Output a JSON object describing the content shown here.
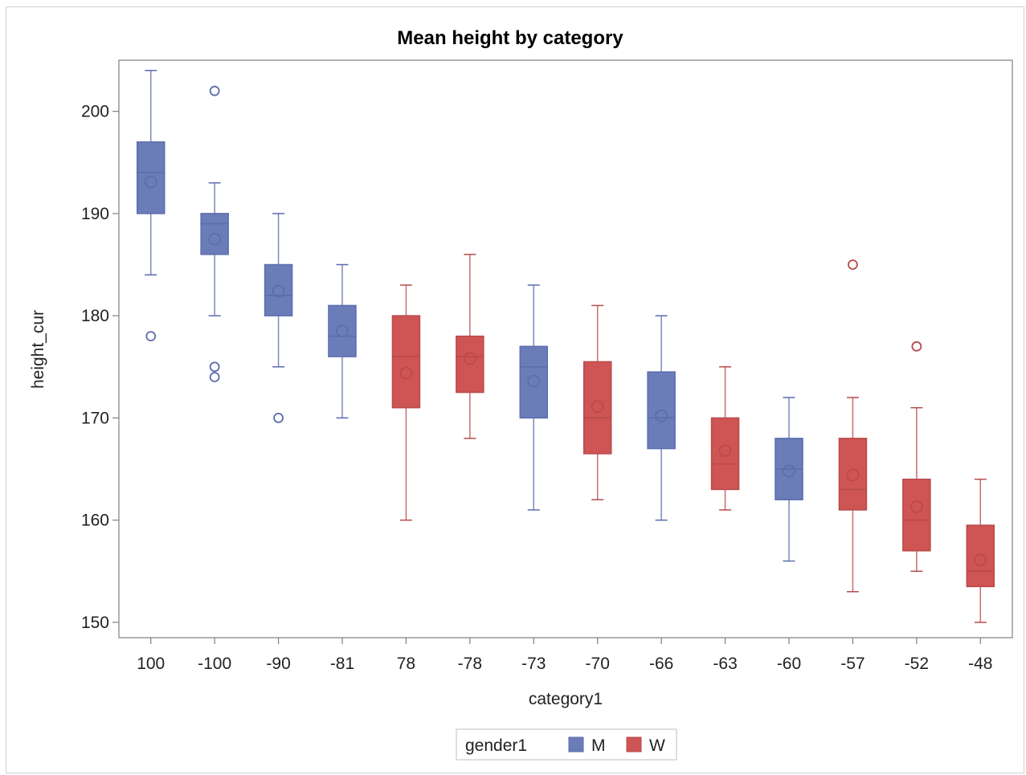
{
  "colors": {
    "M": "#6b7db8",
    "W": "#cf5454",
    "M_line": "#5a6cae",
    "W_line": "#b84a4a",
    "axis": "#808080"
  },
  "chart_data": {
    "type": "box",
    "title": "Mean height by category",
    "xlabel": "category1",
    "ylabel": "height_cur",
    "ylim": [
      148.5,
      205
    ],
    "yticks": [
      150,
      160,
      170,
      180,
      190,
      200
    ],
    "grid": false,
    "legend": {
      "title": "gender1",
      "placement": "bottom",
      "entries": [
        "M",
        "W"
      ]
    },
    "categories": [
      "100",
      "-100",
      "-90",
      "-81",
      "78",
      "-78",
      "-73",
      "-70",
      "-66",
      "-63",
      "-60",
      "-57",
      "-52",
      "-48"
    ],
    "boxes": [
      {
        "category": "100",
        "group": "M",
        "q1": 190,
        "median": 194,
        "q3": 197,
        "whisker_low": 184,
        "whisker_high": 204,
        "mean": 193.1,
        "outliers": [
          178
        ]
      },
      {
        "category": "-100",
        "group": "M",
        "q1": 186,
        "median": 189,
        "q3": 190,
        "whisker_low": 180,
        "whisker_high": 193,
        "mean": 187.5,
        "outliers": [
          202,
          175,
          174
        ]
      },
      {
        "category": "-90",
        "group": "M",
        "q1": 180,
        "median": 182,
        "q3": 185,
        "whisker_low": 175,
        "whisker_high": 190,
        "mean": 182.4,
        "outliers": [
          170
        ]
      },
      {
        "category": "-81",
        "group": "M",
        "q1": 176,
        "median": 178,
        "q3": 181,
        "whisker_low": 170,
        "whisker_high": 185,
        "mean": 178.5,
        "outliers": []
      },
      {
        "category": "78",
        "group": "W",
        "q1": 171,
        "median": 176,
        "q3": 180,
        "whisker_low": 160,
        "whisker_high": 183,
        "mean": 174.4,
        "outliers": []
      },
      {
        "category": "-78",
        "group": "W",
        "q1": 172.5,
        "median": 176,
        "q3": 178,
        "whisker_low": 168,
        "whisker_high": 186,
        "mean": 175.8,
        "outliers": []
      },
      {
        "category": "-73",
        "group": "M",
        "q1": 170,
        "median": 175,
        "q3": 177,
        "whisker_low": 161,
        "whisker_high": 183,
        "mean": 173.6,
        "outliers": []
      },
      {
        "category": "-70",
        "group": "W",
        "q1": 166.5,
        "median": 170,
        "q3": 175.5,
        "whisker_low": 162,
        "whisker_high": 181,
        "mean": 171.1,
        "outliers": []
      },
      {
        "category": "-66",
        "group": "M",
        "q1": 167,
        "median": 170,
        "q3": 174.5,
        "whisker_low": 160,
        "whisker_high": 180,
        "mean": 170.2,
        "outliers": []
      },
      {
        "category": "-63",
        "group": "W",
        "q1": 163,
        "median": 165.5,
        "q3": 170,
        "whisker_low": 161,
        "whisker_high": 175,
        "mean": 166.8,
        "outliers": []
      },
      {
        "category": "-60",
        "group": "M",
        "q1": 162,
        "median": 165,
        "q3": 168,
        "whisker_low": 156,
        "whisker_high": 172,
        "mean": 164.8,
        "outliers": []
      },
      {
        "category": "-57",
        "group": "W",
        "q1": 161,
        "median": 163,
        "q3": 168,
        "whisker_low": 153,
        "whisker_high": 172,
        "mean": 164.4,
        "outliers": [
          185
        ]
      },
      {
        "category": "-52",
        "group": "W",
        "q1": 157,
        "median": 160,
        "q3": 164,
        "whisker_low": 155,
        "whisker_high": 171,
        "mean": 161.3,
        "outliers": [
          177
        ]
      },
      {
        "category": "-48",
        "group": "W",
        "q1": 153.5,
        "median": 155,
        "q3": 159.5,
        "whisker_low": 150,
        "whisker_high": 164,
        "mean": 156.1,
        "outliers": []
      }
    ]
  }
}
